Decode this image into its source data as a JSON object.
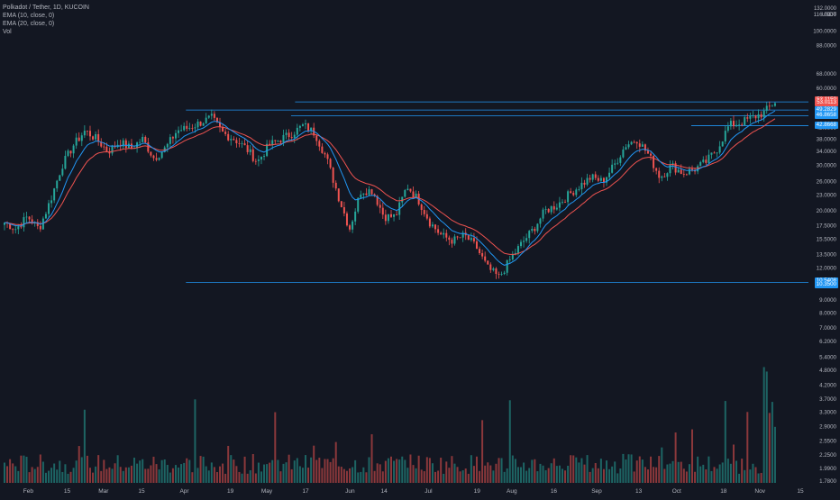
{
  "legend": {
    "symbol": "Polkadot / Tether, 1D, KUCOIN",
    "ema10": "EMA (10, close, 0)",
    "ema20": "EMA (20, close, 0)",
    "vol": "Vol"
  },
  "axis": {
    "top_label": "132.0000",
    "unit": "USDT"
  },
  "price_tags": [
    {
      "text": "53.1150",
      "color": "#ef5350"
    },
    {
      "text": "53.0113",
      "color": "#ef5350"
    },
    {
      "text": "49.2829",
      "color": "#2196f3"
    },
    {
      "text": "46.8658",
      "color": "#2196f3"
    },
    {
      "text": "42.8668",
      "color": "#2196f3"
    },
    {
      "text": "10.5408",
      "color": "#2196f3"
    },
    {
      "text": "10.3500",
      "color": "#2196f3"
    }
  ],
  "colors": {
    "up": "#26a69a",
    "down": "#ef5350",
    "ema10": "#2196f3",
    "ema20": "#ef5350",
    "hline": "#2196f3",
    "grid": "#1e222d",
    "bg": "#131722"
  },
  "chart_data": {
    "type": "candlestick",
    "y_scale": "log",
    "ylim": [
      1.75,
      132
    ],
    "y_ticks": [
      "132.0000",
      "116.0000",
      "100.0000",
      "88.0000",
      "68.0000",
      "60.0000",
      "54.0000",
      "48.0000",
      "42.0000",
      "38.0000",
      "34.0000",
      "30.0000",
      "26.0000",
      "23.0000",
      "20.0000",
      "17.5000",
      "15.5000",
      "13.5000",
      "12.0000",
      "10.5000",
      "9.0000",
      "8.0000",
      "7.0000",
      "6.2000",
      "5.4000",
      "4.8000",
      "4.2000",
      "3.7000",
      "3.3000",
      "2.9000",
      "2.5500",
      "2.2500",
      "1.9900",
      "1.7800"
    ],
    "x_labels": [
      "Feb",
      "15",
      "Mar",
      "15",
      "Apr",
      "19",
      "May",
      "17",
      "Jun",
      "14",
      "Jul",
      "19",
      "Aug",
      "16",
      "Sep",
      "13",
      "Oct",
      "18",
      "Nov",
      "15"
    ],
    "x_label_fracs": [
      0.035,
      0.083,
      0.128,
      0.175,
      0.228,
      0.285,
      0.33,
      0.378,
      0.433,
      0.475,
      0.53,
      0.59,
      0.633,
      0.685,
      0.738,
      0.79,
      0.837,
      0.895,
      0.94,
      0.99
    ],
    "ohlc_anchor_closes": [
      18,
      17,
      19,
      17,
      22,
      30,
      36,
      41,
      38,
      34,
      37,
      35,
      38,
      32,
      35,
      41,
      42,
      44,
      46,
      40,
      38,
      35,
      31,
      36,
      38,
      40,
      43,
      40,
      32,
      23,
      17,
      24,
      24,
      19,
      19,
      25,
      22,
      18,
      16,
      15.3,
      16,
      14.5,
      12,
      11,
      13,
      15,
      17,
      20,
      21,
      23,
      25,
      27,
      26,
      30,
      36,
      38,
      33,
      27,
      30,
      28,
      29,
      31,
      35,
      43,
      44,
      46,
      48,
      53.1
    ],
    "hlines": [
      {
        "label": "10.5408",
        "from": 0.23,
        "value": 10.54
      },
      {
        "label": "49.2829",
        "from": 0.23,
        "value": 49.28
      },
      {
        "label": "53.0113",
        "from": 0.365,
        "value": 53.0
      },
      {
        "label": "46.8658",
        "from": 0.36,
        "value": 46.87
      },
      {
        "label": "42.8668",
        "from": 0.855,
        "value": 42.87
      }
    ],
    "volume": {
      "shown": true,
      "note": "bottom-overlay"
    },
    "series": [
      {
        "name": "EMA (10, close, 0)",
        "color": "#2196f3"
      },
      {
        "name": "EMA (20, close, 0)",
        "color": "#ef5350"
      }
    ]
  }
}
